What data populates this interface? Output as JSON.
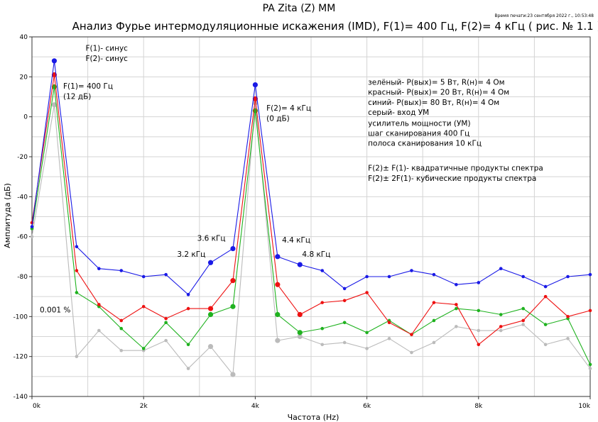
{
  "chart_data": {
    "type": "line",
    "header": "PA Zita (Z) MM",
    "title": "Анализ Фурье интермодуляционные искажения (IMD), F(1)= 400 Гц, F(2)= 4 кГц ( рис. № 1.1 )",
    "print_time": "Время печати:23 сентября 2022 г., 10:53:48",
    "xlabel": "Частота (Hz)",
    "ylabel": "Амплитуда (дБ)",
    "xlim": [
      0,
      10000
    ],
    "ylim": [
      -140,
      40
    ],
    "x_ticks": [
      {
        "v": 0,
        "label": "0k"
      },
      {
        "v": 2000,
        "label": "2k"
      },
      {
        "v": 4000,
        "label": "4k"
      },
      {
        "v": 6000,
        "label": "6k"
      },
      {
        "v": 8000,
        "label": "8k"
      },
      {
        "v": 10000,
        "label": "10k"
      }
    ],
    "y_ticks": [
      {
        "v": 40,
        "label": "40"
      },
      {
        "v": 20,
        "label": "20"
      },
      {
        "v": 0,
        "label": "0"
      },
      {
        "v": -20,
        "label": "-20"
      },
      {
        "v": -40,
        "label": "-40"
      },
      {
        "v": -60,
        "label": "-60"
      },
      {
        "v": -80,
        "label": "-80"
      },
      {
        "v": -100,
        "label": "-100"
      },
      {
        "v": -120,
        "label": "-120"
      },
      {
        "v": -140,
        "label": "-140"
      }
    ],
    "grid": true,
    "x": [
      0,
      400,
      800,
      1200,
      1600,
      2000,
      2400,
      2800,
      3200,
      3600,
      4000,
      4400,
      4800,
      5200,
      5600,
      6000,
      6400,
      6800,
      7200,
      7600,
      8000,
      8400,
      8800,
      9200,
      9600,
      10000
    ],
    "big_marker_indices": [
      1,
      8,
      9,
      10,
      11,
      12
    ],
    "series": [
      {
        "color": "#bbbbbb",
        "values": [
          -60,
          6,
          -120,
          -107,
          -117,
          -117,
          -112,
          -126,
          -115,
          -129,
          7,
          -112,
          -110,
          -114,
          -113,
          -116,
          -111,
          -118,
          -113,
          -105,
          -107,
          -107,
          -104,
          -114,
          -111,
          -126
        ]
      },
      {
        "color": "#1fb21f",
        "values": [
          -56,
          15,
          -88,
          -95,
          -106,
          -116,
          -103,
          -114,
          -99,
          -95,
          3,
          -99,
          -108,
          -106,
          -103,
          -108,
          -102,
          -109,
          -102,
          -96,
          -97,
          -99,
          -96,
          -104,
          -101,
          -124
        ]
      },
      {
        "color": "#ee1111",
        "values": [
          -53,
          21,
          -77,
          -94,
          -102,
          -95,
          -101,
          -96,
          -96,
          -82,
          9,
          -84,
          -99,
          -93,
          -92,
          -88,
          -103,
          -109,
          -93,
          -94,
          -114,
          -105,
          -102,
          -90,
          -100,
          -97
        ]
      },
      {
        "color": "#1a1ae6",
        "values": [
          -55,
          28,
          -65,
          -76,
          -77,
          -80,
          -79,
          -89,
          -73,
          -66,
          16,
          -70,
          -74,
          -77,
          -86,
          -80,
          -80,
          -77,
          -79,
          -84,
          -83,
          -76,
          -80,
          -85,
          -80,
          -79
        ]
      }
    ],
    "annotations": [
      {
        "text": "F(1)- синус",
        "x": 960,
        "y": 33
      },
      {
        "text": "F(2)- синус",
        "x": 960,
        "y": 28
      },
      {
        "text": "F(1)= 400 Гц",
        "x": 560,
        "y": 14
      },
      {
        "text": "(12 дБ)",
        "x": 560,
        "y": 9
      },
      {
        "text": "F(2)= 4 кГц",
        "x": 4200,
        "y": 3
      },
      {
        "text": "(0 дБ)",
        "x": 4200,
        "y": -2
      },
      {
        "text": "3.6 кГц",
        "x": 2960,
        "y": -62
      },
      {
        "text": "3.2 кГц",
        "x": 2600,
        "y": -70
      },
      {
        "text": "4.4 кГц",
        "x": 4480,
        "y": -63
      },
      {
        "text": "4.8 кГц",
        "x": 4840,
        "y": -70
      },
      {
        "text": "0.001 %",
        "x": 140,
        "y": -98
      },
      {
        "text": "зелёный- P(вых)= 5 Вт, R(н)= 4 Ом",
        "x": 6020,
        "y": 16
      },
      {
        "text": "красный- P(вых)= 20 Вт, R(н)= 4 Ом",
        "x": 6020,
        "y": 11
      },
      {
        "text": "синий- P(вых)= 80 Вт, R(н)= 4 Ом",
        "x": 6020,
        "y": 6
      },
      {
        "text": "серый- вход УМ",
        "x": 6020,
        "y": 1
      },
      {
        "text": "усилитель мощности (УМ)",
        "x": 6020,
        "y": -4.5
      },
      {
        "text": "шаг сканирования 400 Гц",
        "x": 6020,
        "y": -9.5
      },
      {
        "text": "полоса сканирования 10 кГц",
        "x": 6020,
        "y": -14.5
      },
      {
        "text": "F(2)± F(1)- квадратичные продукты спектра",
        "x": 6020,
        "y": -27
      },
      {
        "text": "F(2)± 2F(1)- кубические продукты спектра",
        "x": 6020,
        "y": -32
      }
    ]
  }
}
